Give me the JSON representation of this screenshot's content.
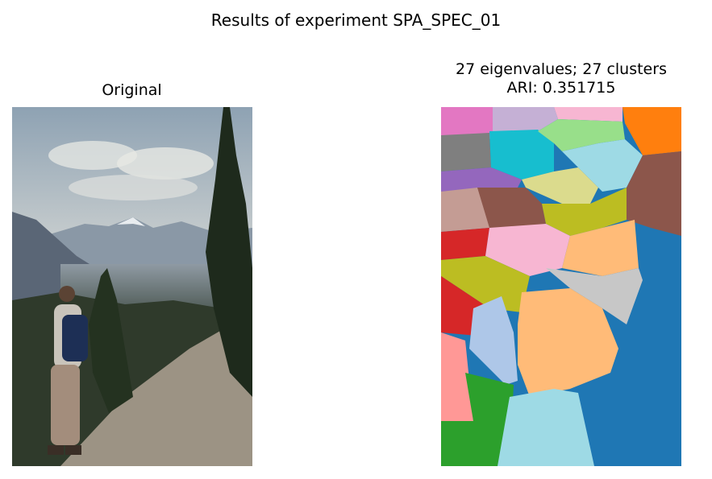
{
  "figure": {
    "suptitle": "Results of experiment SPA_SPEC_01"
  },
  "left_panel": {
    "title": "Original"
  },
  "right_panel": {
    "title_line1": "27 eigenvalues; 27 clusters",
    "title_line2": "ARI: 0.351715"
  },
  "colors": {
    "sky_top": "#8fa3b5",
    "sky_bottom": "#c9ced0",
    "mountain": "#7d8c99",
    "forest": "#2f3b2a",
    "rocks": "#9a9182",
    "segment_blue": "#1f77b4",
    "segment_orange": "#ff7f0e",
    "segment_green": "#2ca02c",
    "segment_red": "#d62728",
    "segment_purple": "#9467bd",
    "segment_brown": "#8c564b",
    "segment_pink": "#e377c2",
    "segment_gray": "#7f7f7f",
    "segment_olive": "#bcbd22",
    "segment_cyan": "#17becf"
  }
}
